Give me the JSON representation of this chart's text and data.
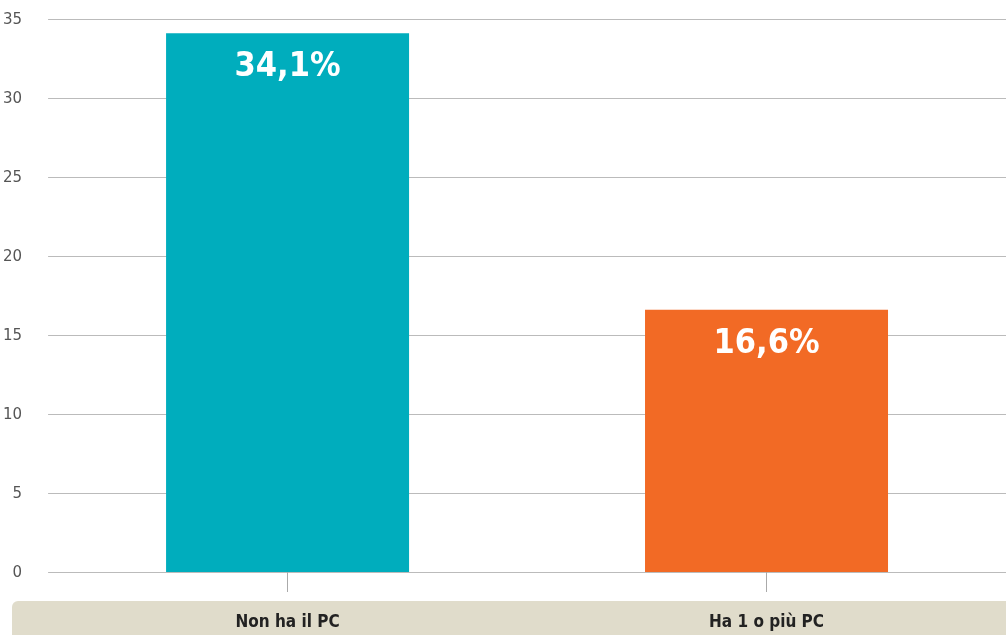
{
  "chart_data": {
    "type": "bar",
    "categories": [
      "Non ha il PC",
      "Ha 1 o più PC"
    ],
    "values": [
      34.1,
      16.6
    ],
    "colors": [
      "#00adbd",
      "#f26a25"
    ],
    "value_labels": [
      "34,1%",
      "16,6%"
    ],
    "ylim": [
      0,
      35
    ],
    "yticks": [
      0,
      5,
      10,
      15,
      20,
      25,
      30,
      35
    ],
    "grid": "y"
  }
}
